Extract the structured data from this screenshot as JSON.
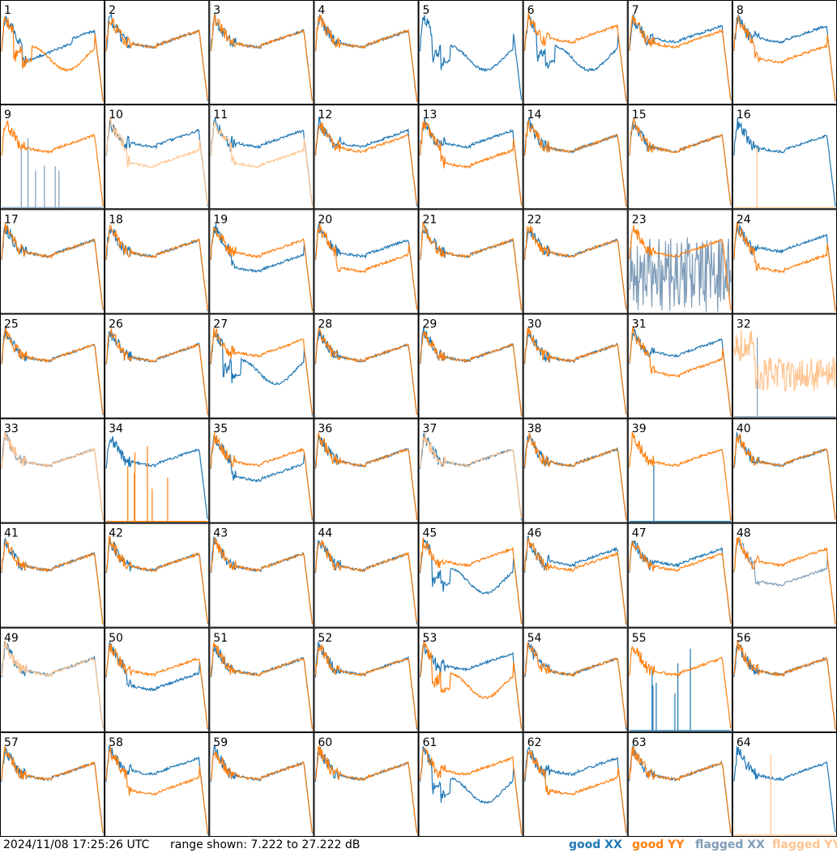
{
  "footer": {
    "timestamp": "2024/11/08 17:25:26 UTC",
    "range_text": "range shown: 7.222 to 27.222 dB"
  },
  "legend": [
    {
      "label": "good XX",
      "color": "#1f77b4"
    },
    {
      "label": "good YY",
      "color": "#ff7f0e"
    },
    {
      "label": "flagged XX",
      "color": "#7f9cb8"
    },
    {
      "label": "flagged YY",
      "color": "#ffc48f"
    }
  ],
  "chart_data": {
    "type": "line",
    "grid": "8x8 small multiples",
    "y_range_db": [
      7.222,
      27.222
    ],
    "panels": [
      {
        "id": "1",
        "xx": "a",
        "yy": "b",
        "xx_flagged": false,
        "yy_flagged": false
      },
      {
        "id": "2",
        "xx": "g",
        "yy": "g",
        "xx_flagged": false,
        "yy_flagged": false
      },
      {
        "id": "3",
        "xx": "g",
        "yy": "g",
        "xx_flagged": false,
        "yy_flagged": false
      },
      {
        "id": "4",
        "xx": "g",
        "yy": "g",
        "xx_flagged": false,
        "yy_flagged": false
      },
      {
        "id": "5",
        "xx": "b",
        "yy": "none",
        "xx_flagged": false,
        "yy_flagged": false
      },
      {
        "id": "6",
        "xx": "b",
        "yy": "n",
        "xx_flagged": false,
        "yy_flagged": false
      },
      {
        "id": "7",
        "xx": "n",
        "yy": "g",
        "xx_flagged": false,
        "yy_flagged": false
      },
      {
        "id": "8",
        "xx": "n",
        "yy": "d",
        "xx_flagged": false,
        "yy_flagged": false
      },
      {
        "id": "9",
        "xx": "spikes",
        "yy": "g",
        "xx_flagged": true,
        "yy_flagged": false
      },
      {
        "id": "10",
        "xx": "n",
        "yy": "d",
        "xx_flagged": false,
        "yy_flagged": true
      },
      {
        "id": "11",
        "xx": "n",
        "yy": "d",
        "xx_flagged": false,
        "yy_flagged": true
      },
      {
        "id": "12",
        "xx": "n",
        "yy": "g",
        "xx_flagged": false,
        "yy_flagged": false
      },
      {
        "id": "13",
        "xx": "n",
        "yy": "d",
        "xx_flagged": false,
        "yy_flagged": false
      },
      {
        "id": "14",
        "xx": "g",
        "yy": "g",
        "xx_flagged": false,
        "yy_flagged": false
      },
      {
        "id": "15",
        "xx": "g",
        "yy": "g",
        "xx_flagged": false,
        "yy_flagged": false
      },
      {
        "id": "16",
        "xx": "g",
        "yy": "spike1",
        "xx_flagged": false,
        "yy_flagged": true
      },
      {
        "id": "17",
        "xx": "g",
        "yy": "g",
        "xx_flagged": false,
        "yy_flagged": false
      },
      {
        "id": "18",
        "xx": "g",
        "yy": "g",
        "xx_flagged": false,
        "yy_flagged": false
      },
      {
        "id": "19",
        "xx": "d",
        "yy": "g",
        "xx_flagged": false,
        "yy_flagged": false
      },
      {
        "id": "20",
        "xx": "g",
        "yy": "d",
        "xx_flagged": false,
        "yy_flagged": false
      },
      {
        "id": "21",
        "xx": "g",
        "yy": "g",
        "xx_flagged": false,
        "yy_flagged": false
      },
      {
        "id": "22",
        "xx": "g",
        "yy": "g",
        "xx_flagged": false,
        "yy_flagged": false
      },
      {
        "id": "23",
        "xx": "noise",
        "yy": "g",
        "xx_flagged": true,
        "yy_flagged": false
      },
      {
        "id": "24",
        "xx": "n",
        "yy": "d",
        "xx_flagged": false,
        "yy_flagged": false
      },
      {
        "id": "25",
        "xx": "g",
        "yy": "g",
        "xx_flagged": false,
        "yy_flagged": false
      },
      {
        "id": "26",
        "xx": "g",
        "yy": "g",
        "xx_flagged": false,
        "yy_flagged": false
      },
      {
        "id": "27",
        "xx": "b",
        "yy": "n",
        "xx_flagged": false,
        "yy_flagged": false
      },
      {
        "id": "28",
        "xx": "g",
        "yy": "g",
        "xx_flagged": false,
        "yy_flagged": false
      },
      {
        "id": "29",
        "xx": "g",
        "yy": "g",
        "xx_flagged": false,
        "yy_flagged": false
      },
      {
        "id": "30",
        "xx": "g",
        "yy": "g",
        "xx_flagged": false,
        "yy_flagged": false
      },
      {
        "id": "31",
        "xx": "n",
        "yy": "d",
        "xx_flagged": false,
        "yy_flagged": false
      },
      {
        "id": "32",
        "xx": "spike1",
        "yy": "noiseHigh",
        "xx_flagged": true,
        "yy_flagged": true
      },
      {
        "id": "33",
        "xx": "g",
        "yy": "g",
        "xx_flagged": true,
        "yy_flagged": true
      },
      {
        "id": "34",
        "xx": "g",
        "yy": "spikes",
        "xx_flagged": false,
        "yy_flagged": false
      },
      {
        "id": "35",
        "xx": "d",
        "yy": "g",
        "xx_flagged": false,
        "yy_flagged": false
      },
      {
        "id": "36",
        "xx": "g",
        "yy": "g",
        "xx_flagged": false,
        "yy_flagged": false
      },
      {
        "id": "37",
        "xx": "g",
        "yy": "g",
        "xx_flagged": false,
        "yy_flagged": true
      },
      {
        "id": "38",
        "xx": "g",
        "yy": "g",
        "xx_flagged": false,
        "yy_flagged": false
      },
      {
        "id": "39",
        "xx": "spike1",
        "yy": "g",
        "xx_flagged": false,
        "yy_flagged": false
      },
      {
        "id": "40",
        "xx": "g",
        "yy": "g",
        "xx_flagged": false,
        "yy_flagged": false
      },
      {
        "id": "41",
        "xx": "g",
        "yy": "g",
        "xx_flagged": false,
        "yy_flagged": false
      },
      {
        "id": "42",
        "xx": "g",
        "yy": "g",
        "xx_flagged": false,
        "yy_flagged": false
      },
      {
        "id": "43",
        "xx": "g",
        "yy": "g",
        "xx_flagged": false,
        "yy_flagged": false
      },
      {
        "id": "44",
        "xx": "g",
        "yy": "g",
        "xx_flagged": false,
        "yy_flagged": false
      },
      {
        "id": "45",
        "xx": "b",
        "yy": "n",
        "xx_flagged": false,
        "yy_flagged": false
      },
      {
        "id": "46",
        "xx": "n",
        "yy": "g",
        "xx_flagged": false,
        "yy_flagged": false
      },
      {
        "id": "47",
        "xx": "n",
        "yy": "g",
        "xx_flagged": false,
        "yy_flagged": false
      },
      {
        "id": "48",
        "xx": "d",
        "yy": "n",
        "xx_flagged": true,
        "yy_flagged": false
      },
      {
        "id": "49",
        "xx": "g",
        "yy": "g",
        "xx_flagged": false,
        "yy_flagged": true
      },
      {
        "id": "50",
        "xx": "d",
        "yy": "g",
        "xx_flagged": false,
        "yy_flagged": false
      },
      {
        "id": "51",
        "xx": "g",
        "yy": "g",
        "xx_flagged": false,
        "yy_flagged": false
      },
      {
        "id": "52",
        "xx": "g",
        "yy": "g",
        "xx_flagged": false,
        "yy_flagged": false
      },
      {
        "id": "53",
        "xx": "n",
        "yy": "b",
        "xx_flagged": false,
        "yy_flagged": false
      },
      {
        "id": "54",
        "xx": "g",
        "yy": "g",
        "xx_flagged": false,
        "yy_flagged": false
      },
      {
        "id": "55",
        "xx": "spikes",
        "yy": "g",
        "xx_flagged": false,
        "yy_flagged": false
      },
      {
        "id": "56",
        "xx": "g",
        "yy": "g",
        "xx_flagged": false,
        "yy_flagged": false
      },
      {
        "id": "57",
        "xx": "g",
        "yy": "g",
        "xx_flagged": false,
        "yy_flagged": false
      },
      {
        "id": "58",
        "xx": "n",
        "yy": "d",
        "xx_flagged": false,
        "yy_flagged": false
      },
      {
        "id": "59",
        "xx": "g",
        "yy": "g",
        "xx_flagged": false,
        "yy_flagged": false
      },
      {
        "id": "60",
        "xx": "g",
        "yy": "g",
        "xx_flagged": false,
        "yy_flagged": false
      },
      {
        "id": "61",
        "xx": "b",
        "yy": "n",
        "xx_flagged": false,
        "yy_flagged": false
      },
      {
        "id": "62",
        "xx": "n",
        "yy": "d",
        "xx_flagged": false,
        "yy_flagged": false
      },
      {
        "id": "63",
        "xx": "g",
        "yy": "g",
        "xx_flagged": false,
        "yy_flagged": false
      },
      {
        "id": "64",
        "xx": "g",
        "yy": "spike1",
        "xx_flagged": false,
        "yy_flagged": true
      }
    ]
  }
}
